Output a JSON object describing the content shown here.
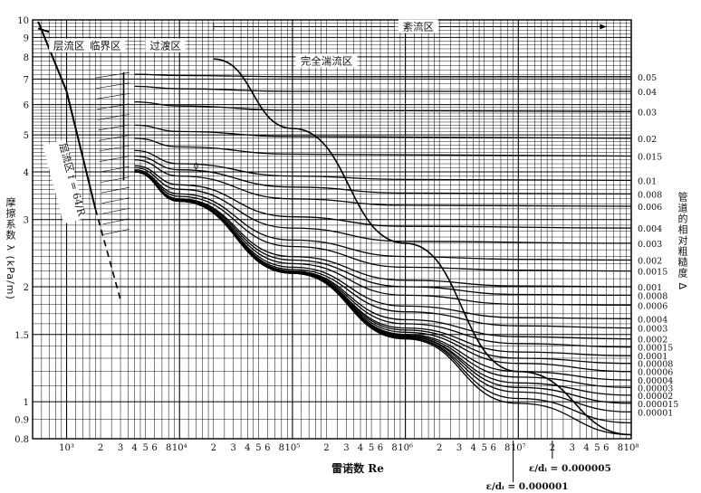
{
  "chart_data": {
    "type": "line",
    "title": "",
    "xlabel": "雷诺数 Re",
    "ylabel": "摩擦系数 λ (kPa/m)",
    "y2label": "管道的相对粗糙度 Δ",
    "xscale": "log",
    "yscale": "log",
    "xlim": [
      500,
      100000000
    ],
    "ylim": [
      0.8,
      10
    ],
    "grid": true,
    "x_ticks": [
      {
        "v": 1000,
        "label": "10³"
      },
      {
        "v": 2000,
        "label": "2"
      },
      {
        "v": 3000,
        "label": "3"
      },
      {
        "v": 4000,
        "label": "4"
      },
      {
        "v": 5000,
        "label": "5"
      },
      {
        "v": 6000,
        "label": "6"
      },
      {
        "v": 8000,
        "label": "8"
      },
      {
        "v": 10000,
        "label": "10⁴"
      },
      {
        "v": 20000,
        "label": "2"
      },
      {
        "v": 30000,
        "label": "3"
      },
      {
        "v": 40000,
        "label": "4"
      },
      {
        "v": 50000,
        "label": "5"
      },
      {
        "v": 60000,
        "label": "6"
      },
      {
        "v": 80000,
        "label": "8"
      },
      {
        "v": 100000,
        "label": "10⁵"
      },
      {
        "v": 200000,
        "label": "2"
      },
      {
        "v": 300000,
        "label": "3"
      },
      {
        "v": 400000,
        "label": "4"
      },
      {
        "v": 500000,
        "label": "5"
      },
      {
        "v": 600000,
        "label": "6"
      },
      {
        "v": 800000,
        "label": "8"
      },
      {
        "v": 1000000,
        "label": "10⁶"
      },
      {
        "v": 2000000,
        "label": "2"
      },
      {
        "v": 3000000,
        "label": "3"
      },
      {
        "v": 4000000,
        "label": "4"
      },
      {
        "v": 5000000,
        "label": "5"
      },
      {
        "v": 6000000,
        "label": "6"
      },
      {
        "v": 8000000,
        "label": "8"
      },
      {
        "v": 10000000,
        "label": "10⁷"
      },
      {
        "v": 20000000,
        "label": "2"
      },
      {
        "v": 30000000,
        "label": "3"
      },
      {
        "v": 40000000,
        "label": "4"
      },
      {
        "v": 50000000,
        "label": "5"
      },
      {
        "v": 60000000,
        "label": "6"
      },
      {
        "v": 80000000,
        "label": "8"
      },
      {
        "v": 100000000,
        "label": "10⁸"
      }
    ],
    "y_ticks": [
      {
        "v": 10,
        "label": "10"
      },
      {
        "v": 9,
        "label": "9"
      },
      {
        "v": 8,
        "label": "8"
      },
      {
        "v": 7,
        "label": "7"
      },
      {
        "v": 6,
        "label": "6"
      },
      {
        "v": 5,
        "label": "5"
      },
      {
        "v": 4,
        "label": "4"
      },
      {
        "v": 3,
        "label": "3"
      },
      {
        "v": 2,
        "label": "2"
      },
      {
        "v": 1.5,
        "label": "1.5"
      },
      {
        "v": 1,
        "label": "1"
      },
      {
        "v": 0.9,
        "label": "0.9"
      },
      {
        "v": 0.8,
        "label": "0.8"
      }
    ],
    "roughness_labels": [
      {
        "label": "0.05",
        "y": 7.1
      },
      {
        "label": "0.04",
        "y": 6.5
      },
      {
        "label": "0.03",
        "y": 5.75
      },
      {
        "label": "0.02",
        "y": 4.9
      },
      {
        "label": "0.015",
        "y": 4.4
      },
      {
        "label": "0.01",
        "y": 3.8
      },
      {
        "label": "0.008",
        "y": 3.5
      },
      {
        "label": "0.006",
        "y": 3.25
      },
      {
        "label": "0.004",
        "y": 2.85
      },
      {
        "label": "0.003",
        "y": 2.6
      },
      {
        "label": "0.002",
        "y": 2.35
      },
      {
        "label": "0.0015",
        "y": 2.2
      },
      {
        "label": "0.001",
        "y": 2.0
      },
      {
        "label": "0.0008",
        "y": 1.9
      },
      {
        "label": "0.0006",
        "y": 1.79
      },
      {
        "label": "0.0004",
        "y": 1.65
      },
      {
        "label": "0.0003",
        "y": 1.56
      },
      {
        "label": "0.0002",
        "y": 1.46
      },
      {
        "label": "0.00015",
        "y": 1.39
      },
      {
        "label": "0.0001",
        "y": 1.32
      },
      {
        "label": "0.00008",
        "y": 1.26
      },
      {
        "label": "0.00006",
        "y": 1.2
      },
      {
        "label": "0.00004",
        "y": 1.14
      },
      {
        "label": "0.00003",
        "y": 1.09
      },
      {
        "label": "0.00002",
        "y": 1.04
      },
      {
        "label": "0.000015",
        "y": 0.99
      },
      {
        "label": "0.00001",
        "y": 0.94
      }
    ],
    "series": [
      {
        "roughness": 0.05,
        "values": [
          [
            4000,
            7.2
          ],
          [
            10000,
            7.15
          ],
          [
            100000,
            7.1
          ],
          [
            100000000,
            7.1
          ]
        ]
      },
      {
        "roughness": 0.04,
        "values": [
          [
            4000,
            6.7
          ],
          [
            10000,
            6.6
          ],
          [
            100000,
            6.5
          ],
          [
            100000000,
            6.5
          ]
        ]
      },
      {
        "roughness": 0.03,
        "values": [
          [
            4000,
            6.1
          ],
          [
            10000,
            5.95
          ],
          [
            100000,
            5.8
          ],
          [
            100000000,
            5.75
          ]
        ]
      },
      {
        "roughness": 0.02,
        "values": [
          [
            4000,
            5.3
          ],
          [
            10000,
            5.1
          ],
          [
            100000,
            4.95
          ],
          [
            100000000,
            4.9
          ]
        ]
      },
      {
        "roughness": 0.015,
        "values": [
          [
            4000,
            4.9
          ],
          [
            10000,
            4.65
          ],
          [
            100000,
            4.45
          ],
          [
            100000000,
            4.4
          ]
        ]
      },
      {
        "roughness": 0.01,
        "values": [
          [
            4000,
            4.55
          ],
          [
            10000,
            4.2
          ],
          [
            100000,
            3.9
          ],
          [
            1000000,
            3.82
          ],
          [
            100000000,
            3.8
          ]
        ]
      },
      {
        "roughness": 0.008,
        "values": [
          [
            4000,
            4.4
          ],
          [
            10000,
            4.05
          ],
          [
            100000,
            3.65
          ],
          [
            1000000,
            3.52
          ],
          [
            100000000,
            3.5
          ]
        ]
      },
      {
        "roughness": 0.006,
        "values": [
          [
            4000,
            4.3
          ],
          [
            10000,
            3.9
          ],
          [
            100000,
            3.4
          ],
          [
            1000000,
            3.27
          ],
          [
            100000000,
            3.25
          ]
        ]
      },
      {
        "roughness": 0.004,
        "values": [
          [
            4000,
            4.15
          ],
          [
            10000,
            3.7
          ],
          [
            100000,
            3.05
          ],
          [
            1000000,
            2.88
          ],
          [
            100000000,
            2.85
          ]
        ]
      },
      {
        "roughness": 0.003,
        "values": [
          [
            4000,
            4.1
          ],
          [
            10000,
            3.6
          ],
          [
            100000,
            2.85
          ],
          [
            1000000,
            2.63
          ],
          [
            100000000,
            2.6
          ]
        ]
      },
      {
        "roughness": 0.002,
        "values": [
          [
            4000,
            4.05
          ],
          [
            10000,
            3.5
          ],
          [
            100000,
            2.65
          ],
          [
            1000000,
            2.4
          ],
          [
            10000000,
            2.36
          ],
          [
            100000000,
            2.35
          ]
        ]
      },
      {
        "roughness": 0.0015,
        "values": [
          [
            4000,
            4.02
          ],
          [
            10000,
            3.45
          ],
          [
            100000,
            2.55
          ],
          [
            1000000,
            2.25
          ],
          [
            10000000,
            2.21
          ],
          [
            100000000,
            2.2
          ]
        ]
      },
      {
        "roughness": 0.001,
        "values": [
          [
            4000,
            4.0
          ],
          [
            10000,
            3.4
          ],
          [
            100000,
            2.4
          ],
          [
            1000000,
            2.08
          ],
          [
            10000000,
            2.01
          ],
          [
            100000000,
            2.0
          ]
        ]
      },
      {
        "roughness": 0.0008,
        "values": [
          [
            4000,
            4.0
          ],
          [
            10000,
            3.38
          ],
          [
            100000,
            2.35
          ],
          [
            1000000,
            2.0
          ],
          [
            10000000,
            1.91
          ],
          [
            100000000,
            1.9
          ]
        ]
      },
      {
        "roughness": 0.0006,
        "values": [
          [
            4000,
            4.0
          ],
          [
            10000,
            3.36
          ],
          [
            100000,
            2.3
          ],
          [
            1000000,
            1.9
          ],
          [
            10000000,
            1.8
          ],
          [
            100000000,
            1.79
          ]
        ]
      },
      {
        "roughness": 0.0004,
        "values": [
          [
            4000,
            4.0
          ],
          [
            10000,
            3.35
          ],
          [
            100000,
            2.25
          ],
          [
            1000000,
            1.78
          ],
          [
            10000000,
            1.66
          ],
          [
            100000000,
            1.65
          ]
        ]
      },
      {
        "roughness": 0.0003,
        "values": [
          [
            4000,
            4.0
          ],
          [
            10000,
            3.35
          ],
          [
            100000,
            2.22
          ],
          [
            1000000,
            1.72
          ],
          [
            10000000,
            1.58
          ],
          [
            100000000,
            1.56
          ]
        ]
      },
      {
        "roughness": 0.0002,
        "values": [
          [
            4000,
            4.0
          ],
          [
            10000,
            3.35
          ],
          [
            100000,
            2.2
          ],
          [
            1000000,
            1.64
          ],
          [
            10000000,
            1.48
          ],
          [
            100000000,
            1.46
          ]
        ]
      },
      {
        "roughness": 0.00015,
        "values": [
          [
            4000,
            4.0
          ],
          [
            10000,
            3.35
          ],
          [
            100000,
            2.19
          ],
          [
            1000000,
            1.6
          ],
          [
            10000000,
            1.42
          ],
          [
            100000000,
            1.39
          ]
        ]
      },
      {
        "roughness": 0.0001,
        "values": [
          [
            4000,
            4.0
          ],
          [
            10000,
            3.35
          ],
          [
            100000,
            2.18
          ],
          [
            1000000,
            1.56
          ],
          [
            10000000,
            1.35
          ],
          [
            100000000,
            1.32
          ]
        ]
      },
      {
        "roughness": 8e-05,
        "values": [
          [
            4000,
            4.0
          ],
          [
            10000,
            3.35
          ],
          [
            100000,
            2.18
          ],
          [
            1000000,
            1.54
          ],
          [
            10000000,
            1.3
          ],
          [
            100000000,
            1.26
          ]
        ]
      },
      {
        "roughness": 6e-05,
        "values": [
          [
            4000,
            4.0
          ],
          [
            10000,
            3.35
          ],
          [
            100000,
            2.17
          ],
          [
            1000000,
            1.52
          ],
          [
            10000000,
            1.26
          ],
          [
            100000000,
            1.2
          ]
        ]
      },
      {
        "roughness": 4e-05,
        "values": [
          [
            4000,
            4.0
          ],
          [
            10000,
            3.35
          ],
          [
            100000,
            2.17
          ],
          [
            1000000,
            1.5
          ],
          [
            10000000,
            1.2
          ],
          [
            100000000,
            1.14
          ]
        ]
      },
      {
        "roughness": 3e-05,
        "values": [
          [
            4000,
            4.0
          ],
          [
            10000,
            3.35
          ],
          [
            100000,
            2.17
          ],
          [
            1000000,
            1.49
          ],
          [
            10000000,
            1.16
          ],
          [
            100000000,
            1.09
          ]
        ]
      },
      {
        "roughness": 2e-05,
        "values": [
          [
            4000,
            4.0
          ],
          [
            10000,
            3.35
          ],
          [
            100000,
            2.17
          ],
          [
            1000000,
            1.48
          ],
          [
            10000000,
            1.12
          ],
          [
            100000000,
            1.04
          ]
        ]
      },
      {
        "roughness": 1.5e-05,
        "values": [
          [
            4000,
            4.0
          ],
          [
            10000,
            3.35
          ],
          [
            100000,
            2.17
          ],
          [
            1000000,
            1.48
          ],
          [
            10000000,
            1.09
          ],
          [
            100000000,
            0.99
          ]
        ]
      },
      {
        "roughness": 1e-05,
        "values": [
          [
            4000,
            4.0
          ],
          [
            10000,
            3.35
          ],
          [
            100000,
            2.17
          ],
          [
            1000000,
            1.47
          ],
          [
            10000000,
            1.06
          ],
          [
            100000000,
            0.94
          ]
        ]
      },
      {
        "roughness": 5e-06,
        "values": [
          [
            4000,
            4.0
          ],
          [
            10000,
            3.35
          ],
          [
            100000,
            2.17
          ],
          [
            1000000,
            1.47
          ],
          [
            10000000,
            1.02
          ],
          [
            100000000,
            0.88
          ]
        ]
      },
      {
        "roughness": 1e-06,
        "values": [
          [
            4000,
            4.0
          ],
          [
            10000,
            3.35
          ],
          [
            100000,
            2.17
          ],
          [
            1000000,
            1.46
          ],
          [
            10000000,
            0.99
          ],
          [
            100000000,
            0.82
          ]
        ]
      }
    ],
    "laminar_line": {
      "values": [
        [
          560,
          9.9
        ],
        [
          1000,
          6.5
        ],
        [
          1800,
          3.2
        ]
      ],
      "dashed_to": [
        [
          1800,
          3.2
        ],
        [
          3000,
          1.85
        ]
      ]
    },
    "boundary_line": {
      "values": [
        [
          560,
          9.5
        ],
        [
          700,
          9.3
        ]
      ]
    },
    "zone_line": {
      "values": [
        [
          20000,
          7.9
        ],
        [
          100000,
          5.2
        ],
        [
          1000000,
          2.6
        ],
        [
          10000000,
          1.2
        ],
        [
          100000000,
          0.82
        ]
      ]
    },
    "regions": [
      {
        "label": "层流区",
        "x": 1050,
        "y": 8.55
      },
      {
        "label": "临界区",
        "x": 2200,
        "y": 8.55
      },
      {
        "label": "过渡区",
        "x": 7500,
        "y": 8.55
      },
      {
        "label": "紊流区",
        "x": 1300000,
        "y": 9.6
      },
      {
        "label": "完全湍流区",
        "x": 200000,
        "y": 7.8
      }
    ],
    "laminar_label": {
      "text": "层流区 f = 64/R",
      "x": 1050,
      "y": 3.8
    },
    "inline_label": {
      "text": "0",
      "x": 14000,
      "y": 4.15
    },
    "annotations": [
      {
        "text": "ε/dᵢ = 0.000005",
        "x": 20000000
      },
      {
        "text": "ε/dᵢ = 0.000001",
        "x": 9000000
      }
    ]
  }
}
